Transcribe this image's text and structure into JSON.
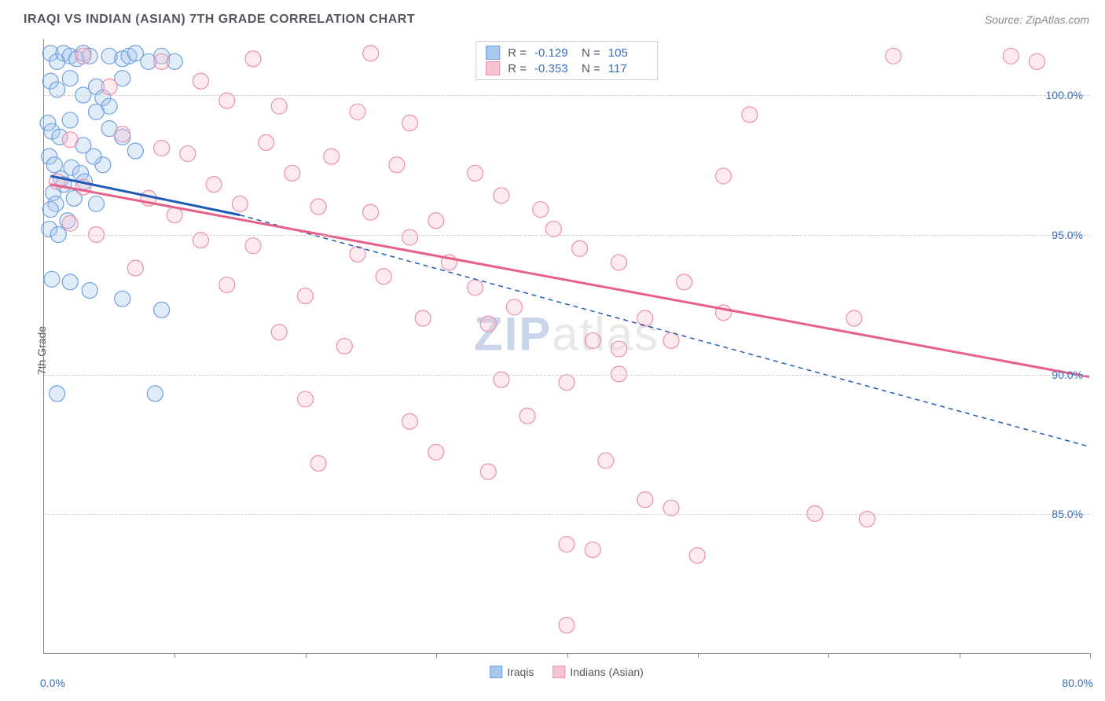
{
  "title": "IRAQI VS INDIAN (ASIAN) 7TH GRADE CORRELATION CHART",
  "source": "Source: ZipAtlas.com",
  "y_axis_label": "7th Grade",
  "watermark_a": "ZIP",
  "watermark_b": "atlas",
  "chart": {
    "type": "scatter",
    "xlim": [
      0,
      80
    ],
    "ylim": [
      80,
      102
    ],
    "x_ticks": [
      0,
      10,
      20,
      30,
      40,
      50,
      60,
      70,
      80
    ],
    "x_tick_labels_shown": {
      "0": "0.0%",
      "80": "80.0%"
    },
    "y_gridlines": [
      85,
      90,
      95,
      100
    ],
    "y_tick_labels": {
      "85": "85.0%",
      "90": "90.0%",
      "95": "95.0%",
      "100": "100.0%"
    },
    "grid_color": "#d0d0d0",
    "background_color": "#ffffff",
    "label_color": "#3b6db8",
    "title_color": "#555560",
    "marker_radius": 10,
    "series": [
      {
        "name": "Iraqis",
        "color_fill": "#a9c8ef",
        "color_stroke": "#6fa0de",
        "trend": {
          "style": "solid",
          "color": "#1f5bb5",
          "x1": 0.5,
          "y1": 97.1,
          "x2": 15,
          "y2": 95.7,
          "extrapolate_to_x": 80,
          "extrapolate_y": 87.4,
          "dash_after_x": 15
        },
        "points": [
          [
            0.5,
            101.5
          ],
          [
            1,
            101.2
          ],
          [
            1.5,
            101.5
          ],
          [
            2,
            101.4
          ],
          [
            2.5,
            101.3
          ],
          [
            3,
            101.5
          ],
          [
            3.5,
            101.4
          ],
          [
            5,
            101.4
          ],
          [
            6,
            101.3
          ],
          [
            6.5,
            101.4
          ],
          [
            7,
            101.5
          ],
          [
            8,
            101.2
          ],
          [
            9,
            101.4
          ],
          [
            10,
            101.2
          ],
          [
            0.5,
            100.5
          ],
          [
            1,
            100.2
          ],
          [
            2,
            100.6
          ],
          [
            3,
            100.0
          ],
          [
            4,
            100.3
          ],
          [
            4.5,
            99.9
          ],
          [
            5,
            99.6
          ],
          [
            6,
            100.6
          ],
          [
            0.3,
            99.0
          ],
          [
            0.6,
            98.7
          ],
          [
            1.2,
            98.5
          ],
          [
            2,
            99.1
          ],
          [
            3,
            98.2
          ],
          [
            4,
            99.4
          ],
          [
            5,
            98.8
          ],
          [
            6,
            98.5
          ],
          [
            7,
            98.0
          ],
          [
            4.5,
            97.5
          ],
          [
            0.4,
            97.8
          ],
          [
            0.8,
            97.5
          ],
          [
            1.3,
            97.0
          ],
          [
            2.1,
            97.4
          ],
          [
            2.8,
            97.2
          ],
          [
            3.8,
            97.8
          ],
          [
            0.7,
            96.5
          ],
          [
            1.5,
            96.8
          ],
          [
            2.3,
            96.3
          ],
          [
            3.1,
            96.9
          ],
          [
            4.0,
            96.1
          ],
          [
            0.9,
            96.1
          ],
          [
            0.5,
            95.9
          ],
          [
            1.8,
            95.5
          ],
          [
            0.4,
            95.2
          ],
          [
            1.1,
            95.0
          ],
          [
            0.6,
            93.4
          ],
          [
            2.0,
            93.3
          ],
          [
            3.5,
            93.0
          ],
          [
            6,
            92.7
          ],
          [
            9,
            92.3
          ],
          [
            1.0,
            89.3
          ],
          [
            8.5,
            89.3
          ]
        ]
      },
      {
        "name": "Indians (Asian)",
        "color_fill": "#f6c4d1",
        "color_stroke": "#ea90ac",
        "trend": {
          "style": "solid",
          "color": "#e85f87",
          "x1": 0.5,
          "y1": 96.8,
          "x2": 80,
          "y2": 89.9
        },
        "points": [
          [
            3,
            101.4
          ],
          [
            9,
            101.2
          ],
          [
            16,
            101.3
          ],
          [
            25,
            101.5
          ],
          [
            65,
            101.4
          ],
          [
            74,
            101.4
          ],
          [
            76,
            101.2
          ],
          [
            5,
            100.3
          ],
          [
            12,
            100.5
          ],
          [
            14,
            99.8
          ],
          [
            18,
            99.6
          ],
          [
            24,
            99.4
          ],
          [
            28,
            99.0
          ],
          [
            54,
            99.3
          ],
          [
            2,
            98.4
          ],
          [
            6,
            98.6
          ],
          [
            9,
            98.1
          ],
          [
            11,
            97.9
          ],
          [
            17,
            98.3
          ],
          [
            22,
            97.8
          ],
          [
            27,
            97.5
          ],
          [
            33,
            97.2
          ],
          [
            52,
            97.1
          ],
          [
            1,
            96.9
          ],
          [
            3,
            96.7
          ],
          [
            8,
            96.3
          ],
          [
            13,
            96.8
          ],
          [
            15,
            96.1
          ],
          [
            19,
            97.2
          ],
          [
            21,
            96.0
          ],
          [
            25,
            95.8
          ],
          [
            30,
            95.5
          ],
          [
            35,
            96.4
          ],
          [
            38,
            95.9
          ],
          [
            2,
            95.4
          ],
          [
            4,
            95.0
          ],
          [
            10,
            95.7
          ],
          [
            12,
            94.8
          ],
          [
            16,
            94.6
          ],
          [
            24,
            94.3
          ],
          [
            28,
            94.9
          ],
          [
            31,
            94.0
          ],
          [
            39,
            95.2
          ],
          [
            41,
            94.5
          ],
          [
            44,
            94.0
          ],
          [
            7,
            93.8
          ],
          [
            14,
            93.2
          ],
          [
            20,
            92.8
          ],
          [
            26,
            93.5
          ],
          [
            33,
            93.1
          ],
          [
            29,
            92.0
          ],
          [
            36,
            92.4
          ],
          [
            46,
            92.0
          ],
          [
            49,
            93.3
          ],
          [
            18,
            91.5
          ],
          [
            23,
            91.0
          ],
          [
            34,
            91.8
          ],
          [
            42,
            91.2
          ],
          [
            44,
            90.9
          ],
          [
            48,
            91.2
          ],
          [
            52,
            92.2
          ],
          [
            62,
            92.0
          ],
          [
            20,
            89.1
          ],
          [
            28,
            88.3
          ],
          [
            35,
            89.8
          ],
          [
            37,
            88.5
          ],
          [
            40,
            89.7
          ],
          [
            44,
            90.0
          ],
          [
            21,
            86.8
          ],
          [
            30,
            87.2
          ],
          [
            34,
            86.5
          ],
          [
            43,
            86.9
          ],
          [
            46,
            85.5
          ],
          [
            48,
            85.2
          ],
          [
            59,
            85.0
          ],
          [
            63,
            84.8
          ],
          [
            40,
            83.9
          ],
          [
            42,
            83.7
          ],
          [
            50,
            83.5
          ],
          [
            40,
            81.0
          ]
        ]
      }
    ],
    "stats_box": [
      {
        "swatch_fill": "#a9c8ef",
        "swatch_stroke": "#6fa0de",
        "r_label": "R =",
        "r": "-0.129",
        "n_label": "N =",
        "n": "105"
      },
      {
        "swatch_fill": "#f6c4d1",
        "swatch_stroke": "#ea90ac",
        "r_label": "R =",
        "r": "-0.353",
        "n_label": "N =",
        "n": "117"
      }
    ],
    "legend": [
      {
        "swatch_fill": "#a9c8ef",
        "swatch_stroke": "#6fa0de",
        "label": "Iraqis"
      },
      {
        "swatch_fill": "#f6c4d1",
        "swatch_stroke": "#ea90ac",
        "label": "Indians (Asian)"
      }
    ]
  }
}
